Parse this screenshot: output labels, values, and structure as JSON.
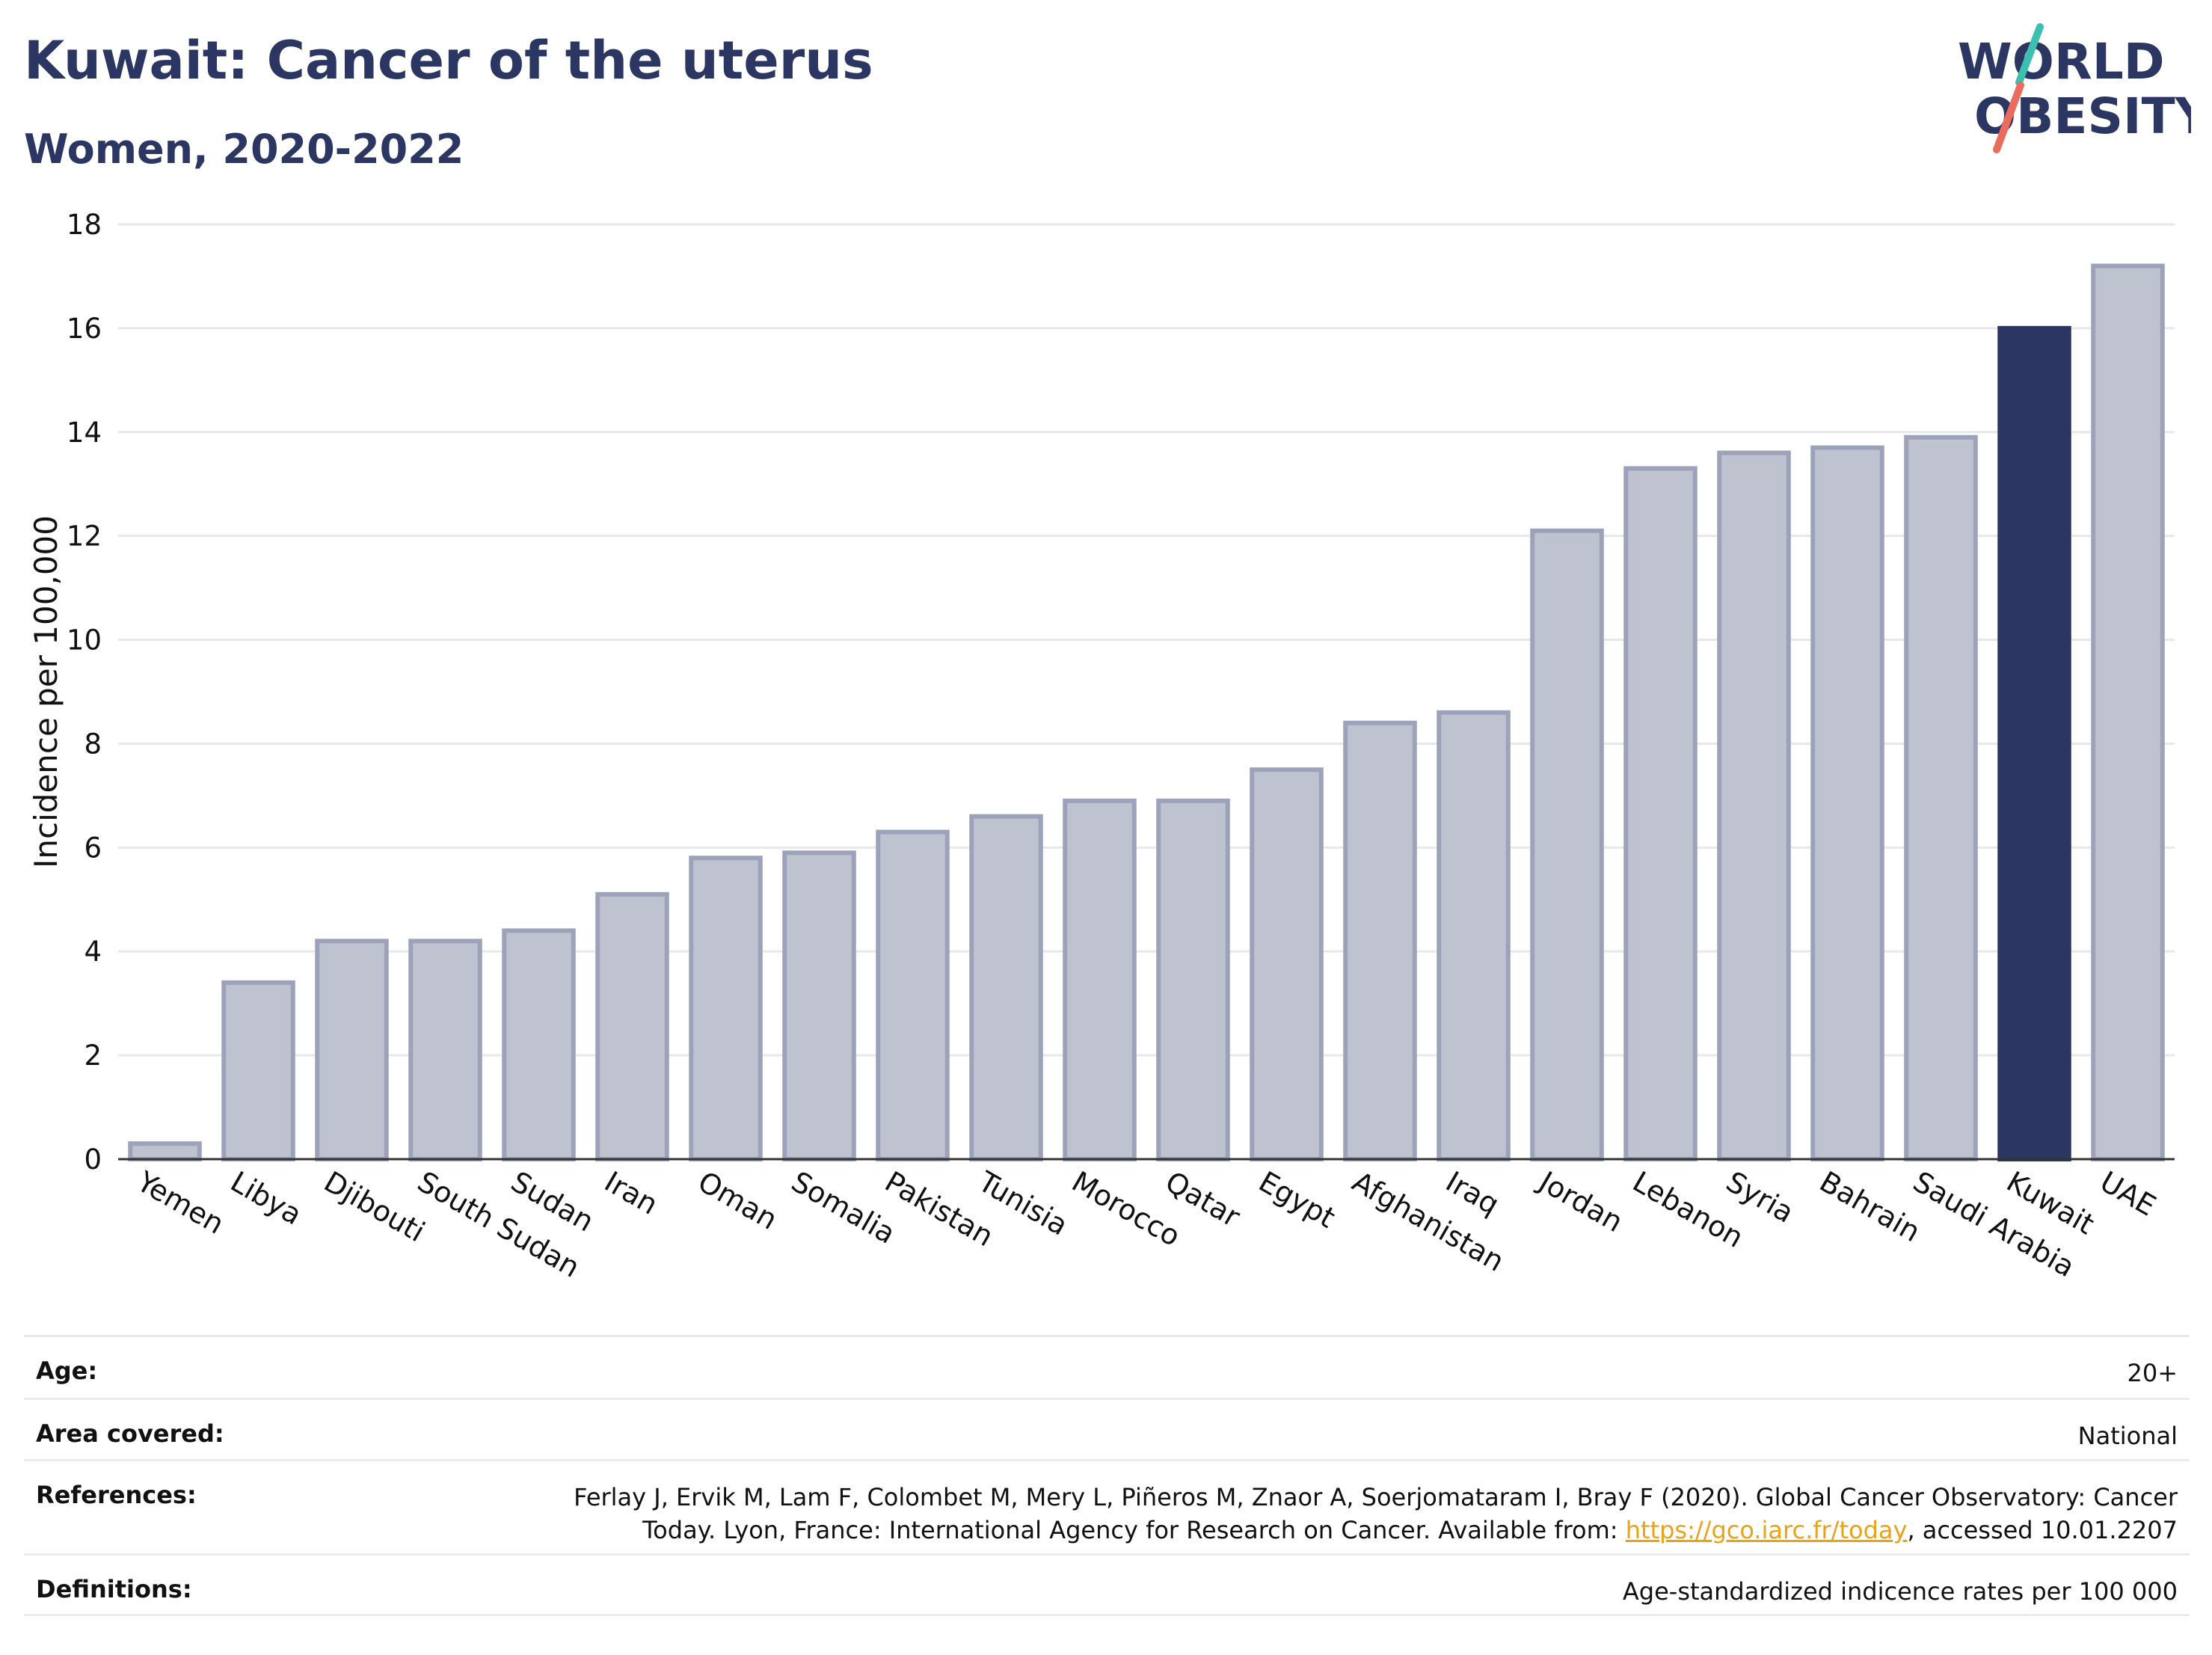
{
  "header": {
    "title": "Kuwait: Cancer of the uterus",
    "subtitle": "Women, 2020-2022",
    "logo_line1": "WORLD",
    "logo_line2": "OBESITY"
  },
  "colors": {
    "highlight": "#2b3762",
    "bar_fill": "#bfc3d0",
    "bar_stroke": "#9ca2b9",
    "grid": "#e6e8ee",
    "logo_teal": "#3bbfb0",
    "logo_coral": "#ea6c5c"
  },
  "chart_data": {
    "type": "bar",
    "categories": [
      "Yemen",
      "Libya",
      "Djibouti",
      "South Sudan",
      "Sudan",
      "Iran",
      "Oman",
      "Somalia",
      "Pakistan",
      "Tunisia",
      "Morocco",
      "Qatar",
      "Egypt",
      "Afghanistan",
      "Iraq",
      "Jordan",
      "Lebanon",
      "Syria",
      "Bahrain",
      "Saudi Arabia",
      "Kuwait",
      "UAE"
    ],
    "values": [
      0.3,
      3.4,
      4.2,
      4.2,
      4.4,
      5.1,
      5.8,
      5.9,
      6.3,
      6.6,
      6.9,
      6.9,
      7.5,
      8.4,
      8.6,
      12.1,
      13.3,
      13.6,
      13.7,
      13.9,
      16.0,
      17.2
    ],
    "highlight": "Kuwait",
    "ylabel": "Incidence per 100,000",
    "ylim": [
      0,
      18
    ],
    "yticks": [
      0,
      2,
      4,
      6,
      8,
      10,
      12,
      14,
      16,
      18
    ],
    "grid": true
  },
  "meta": {
    "age_label": "Age:",
    "age_value": "20+",
    "area_label": "Area covered:",
    "area_value": "National",
    "references_label": "References:",
    "references_text": "Ferlay J, Ervik M, Lam F, Colombet M, Mery L, Piñeros M, Znaor A, Soerjomataram I, Bray F (2020). Global Cancer Observatory: Cancer Today. Lyon, France: International Agency for Research on Cancer. Available from: ",
    "references_link": "https://gco.iarc.fr/today",
    "references_suffix": ", accessed 10.01.2207",
    "definitions_label": "Definitions:",
    "definitions_value": "Age-standardized indicence rates per 100 000"
  }
}
